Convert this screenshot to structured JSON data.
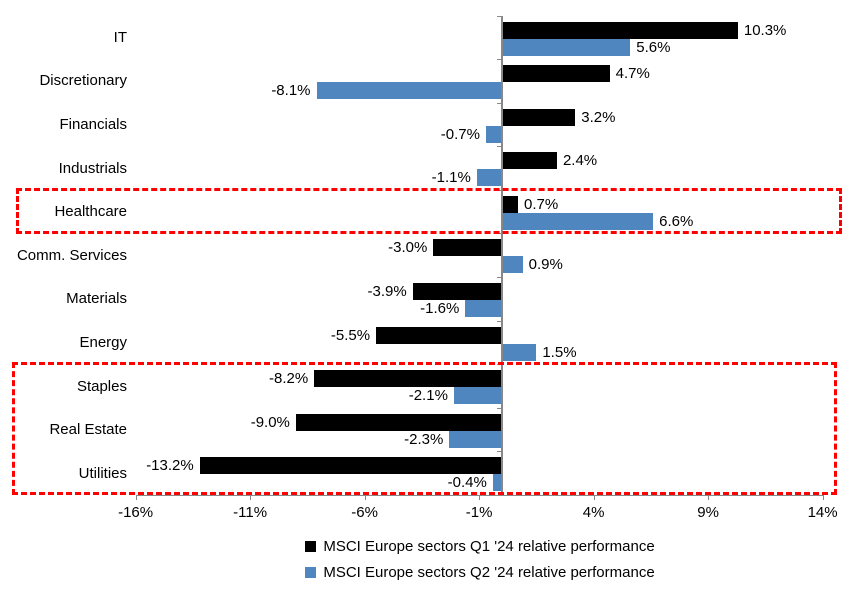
{
  "chart_data": {
    "type": "bar",
    "orientation": "horizontal",
    "title": "",
    "categories": [
      "IT",
      "Discretionary",
      "Financials",
      "Industrials",
      "Healthcare",
      "Comm. Services",
      "Materials",
      "Energy",
      "Staples",
      "Real Estate",
      "Utilities"
    ],
    "series": [
      {
        "name": "MSCI Europe sectors Q1 '24 relative performance",
        "color": "#000000",
        "values": [
          10.3,
          4.7,
          3.2,
          2.4,
          0.7,
          -3.0,
          -3.9,
          -5.5,
          -8.2,
          -9.0,
          -13.2
        ],
        "labels": [
          "10.3%",
          "4.7%",
          "3.2%",
          "2.4%",
          "0.7%",
          "-3.0%",
          "-3.9%",
          "-5.5%",
          "-8.2%",
          "-9.0%",
          "-13.2%"
        ]
      },
      {
        "name": "MSCI Europe sectors Q2 '24 relative performance",
        "color": "#4f86bf",
        "values": [
          5.6,
          -8.1,
          -0.7,
          -1.1,
          6.6,
          0.9,
          -1.6,
          1.5,
          -2.1,
          -2.3,
          -0.4
        ],
        "labels": [
          "5.6%",
          "-8.1%",
          "-0.7%",
          "-1.1%",
          "6.6%",
          "0.9%",
          "-1.6%",
          "1.5%",
          "-2.1%",
          "-2.3%",
          "-0.4%"
        ]
      }
    ],
    "x_axis": {
      "min": -16,
      "max": 14,
      "tick_values": [
        -16,
        -11,
        -6,
        -1,
        4,
        9,
        14
      ],
      "tick_labels": [
        "-16%",
        "-11%",
        "-6%",
        "-1%",
        "4%",
        "9%",
        "14%"
      ]
    },
    "grid": false,
    "legend_position": "bottom",
    "legend": [
      {
        "label": "MSCI Europe sectors Q1 '24 relative performance",
        "color": "#000000"
      },
      {
        "label": "MSCI Europe sectors Q2 '24 relative performance",
        "color": "#4f86bf"
      }
    ],
    "highlights": [
      {
        "name": "healthcare-highlight",
        "start_category": "Healthcare",
        "end_category": "Healthcare",
        "color": "#fe0000"
      },
      {
        "name": "staples-to-utilities-highlight",
        "start_category": "Staples",
        "end_category": "Utilities",
        "color": "#fe0000"
      }
    ],
    "colors": {
      "q1_bar": "#000000",
      "q2_bar": "#4f86bf",
      "axis": "#888888",
      "highlight": "#fe0000",
      "background": "#ffffff"
    }
  }
}
